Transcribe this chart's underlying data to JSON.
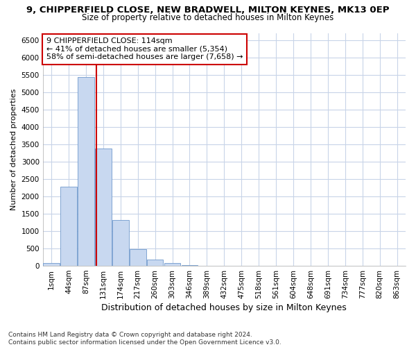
{
  "title": "9, CHIPPERFIELD CLOSE, NEW BRADWELL, MILTON KEYNES, MK13 0EP",
  "subtitle": "Size of property relative to detached houses in Milton Keynes",
  "xlabel": "Distribution of detached houses by size in Milton Keynes",
  "ylabel": "Number of detached properties",
  "bin_labels": [
    "1sqm",
    "44sqm",
    "87sqm",
    "131sqm",
    "174sqm",
    "217sqm",
    "260sqm",
    "303sqm",
    "346sqm",
    "389sqm",
    "432sqm",
    "475sqm",
    "518sqm",
    "561sqm",
    "604sqm",
    "648sqm",
    "691sqm",
    "734sqm",
    "777sqm",
    "820sqm",
    "863sqm"
  ],
  "bin_values": [
    75,
    2280,
    5430,
    3380,
    1310,
    480,
    185,
    90,
    30,
    8,
    3,
    1,
    0,
    0,
    0,
    0,
    0,
    0,
    0,
    0,
    0
  ],
  "bar_color": "#c8d8f0",
  "bar_edge_color": "#7099cc",
  "bar_width": 0.95,
  "red_line_x": 2.595,
  "red_line_color": "#cc0000",
  "annotation_text": "9 CHIPPERFIELD CLOSE: 114sqm\n← 41% of detached houses are smaller (5,354)\n58% of semi-detached houses are larger (7,658) →",
  "annotation_box_facecolor": "#ffffff",
  "annotation_box_edgecolor": "#cc0000",
  "ylim": [
    0,
    6700
  ],
  "yticks": [
    0,
    500,
    1000,
    1500,
    2000,
    2500,
    3000,
    3500,
    4000,
    4500,
    5000,
    5500,
    6000,
    6500
  ],
  "fig_bg_color": "#ffffff",
  "plot_bg_color": "#ffffff",
  "grid_color": "#c8d4e8",
  "title_fontsize": 9.5,
  "subtitle_fontsize": 8.5,
  "xlabel_fontsize": 9,
  "ylabel_fontsize": 8,
  "tick_fontsize": 7.5,
  "annot_fontsize": 8,
  "footnote_fontsize": 6.5,
  "footnote": "Contains HM Land Registry data © Crown copyright and database right 2024.\nContains public sector information licensed under the Open Government Licence v3.0."
}
